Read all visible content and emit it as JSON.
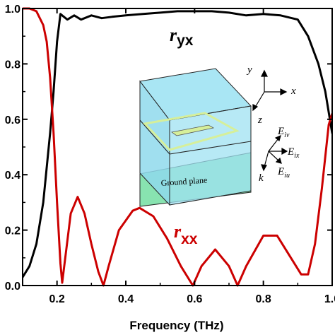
{
  "chart_data": {
    "type": "line",
    "xlabel": "Frequency (THz)",
    "ylabel": "",
    "xlim": [
      0.1,
      1.0
    ],
    "ylim": [
      0.0,
      1.0
    ],
    "x_ticks": [
      "0.2",
      "0.4",
      "0.6",
      "0.8",
      "1.0"
    ],
    "y_ticks": [
      "0.0",
      "0.2",
      "0.4",
      "0.6",
      "0.8",
      "1.0"
    ],
    "grid": false,
    "series": [
      {
        "label_main": "r",
        "label_sub": "yx",
        "color": "#000000",
        "x": [
          0.1,
          0.12,
          0.14,
          0.16,
          0.18,
          0.19,
          0.2,
          0.21,
          0.22,
          0.23,
          0.25,
          0.27,
          0.3,
          0.33,
          0.36,
          0.4,
          0.45,
          0.5,
          0.55,
          0.6,
          0.65,
          0.7,
          0.75,
          0.8,
          0.85,
          0.9,
          0.93,
          0.96,
          0.98,
          1.0
        ],
        "y": [
          0.03,
          0.07,
          0.15,
          0.3,
          0.55,
          0.7,
          0.88,
          0.98,
          0.97,
          0.96,
          0.975,
          0.96,
          0.975,
          0.965,
          0.97,
          0.975,
          0.98,
          0.985,
          0.99,
          0.99,
          0.99,
          0.985,
          0.975,
          0.98,
          0.975,
          0.96,
          0.9,
          0.8,
          0.7,
          0.55
        ]
      },
      {
        "label_main": "r",
        "label_sub": "xx",
        "color": "#cc0000",
        "x": [
          0.1,
          0.12,
          0.14,
          0.16,
          0.17,
          0.18,
          0.19,
          0.2,
          0.21,
          0.215,
          0.22,
          0.24,
          0.26,
          0.28,
          0.3,
          0.32,
          0.335,
          0.35,
          0.38,
          0.42,
          0.44,
          0.48,
          0.52,
          0.56,
          0.595,
          0.62,
          0.66,
          0.7,
          0.725,
          0.75,
          0.8,
          0.84,
          0.88,
          0.91,
          0.93,
          0.95,
          0.97,
          0.99,
          1.0
        ],
        "y": [
          1.0,
          1.0,
          0.99,
          0.94,
          0.88,
          0.75,
          0.55,
          0.3,
          0.08,
          0.01,
          0.06,
          0.26,
          0.32,
          0.26,
          0.15,
          0.05,
          0.0,
          0.07,
          0.2,
          0.27,
          0.28,
          0.25,
          0.17,
          0.07,
          0.0,
          0.07,
          0.13,
          0.07,
          0.0,
          0.07,
          0.18,
          0.18,
          0.1,
          0.04,
          0.04,
          0.15,
          0.35,
          0.58,
          0.62
        ]
      }
    ],
    "inset": {
      "ground_label": "Ground plane",
      "axes_labels": [
        "y",
        "x",
        "z"
      ],
      "field_labels": [
        {
          "main": "E",
          "sub": "iv"
        },
        {
          "main": "E",
          "sub": "ix"
        },
        {
          "main": "k",
          "sub": ""
        },
        {
          "main": "E",
          "sub": "iu"
        }
      ]
    }
  }
}
